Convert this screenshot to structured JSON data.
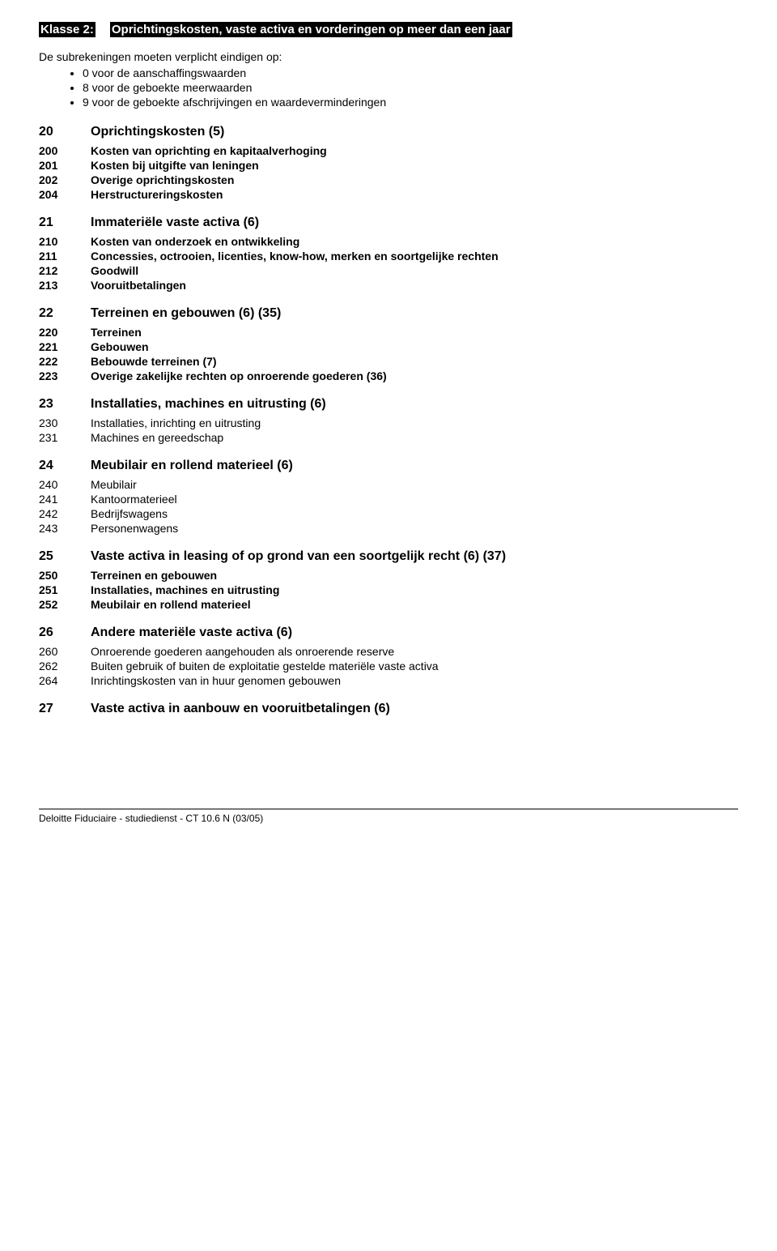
{
  "title": {
    "label": "Klasse 2:",
    "text": "Oprichtingskosten, vaste activa en vorderingen op meer dan een jaar"
  },
  "intro": "De subrekeningen moeten verplicht eindigen op:",
  "bullets": [
    "0 voor de aanschaffingswaarden",
    "8 voor de geboekte meerwaarden",
    "9 voor de geboekte afschrijvingen en waardeverminderingen"
  ],
  "sections": [
    {
      "code": "20",
      "label": "Oprichtingskosten (5)",
      "items": [
        {
          "code": "200",
          "label": "Kosten van oprichting en kapitaalverhoging",
          "bold": true
        },
        {
          "code": "201",
          "label": "Kosten bij uitgifte van leningen",
          "bold": true
        },
        {
          "code": "202",
          "label": "Overige oprichtingskosten",
          "bold": true
        },
        {
          "code": "204",
          "label": "Herstructureringskosten",
          "bold": true
        }
      ]
    },
    {
      "code": "21",
      "label": "Immateriële vaste activa (6)",
      "items": [
        {
          "code": "210",
          "label": "Kosten van onderzoek en ontwikkeling",
          "bold": true
        },
        {
          "code": "211",
          "label": "Concessies, octrooien, licenties, know-how, merken en soortgelijke rechten",
          "bold": true
        },
        {
          "code": "212",
          "label": "Goodwill",
          "bold": true
        },
        {
          "code": "213",
          "label": "Vooruitbetalingen",
          "bold": true
        }
      ]
    },
    {
      "code": "22",
      "label": "Terreinen en gebouwen (6) (35)",
      "items": [
        {
          "code": "220",
          "label": "Terreinen",
          "bold": true
        },
        {
          "code": "221",
          "label": "Gebouwen",
          "bold": true
        },
        {
          "code": "222",
          "label": "Bebouwde terreinen (7)",
          "bold": true
        },
        {
          "code": "223",
          "label": "Overige zakelijke rechten op onroerende goederen (36)",
          "bold": true
        }
      ]
    },
    {
      "code": "23",
      "label": "Installaties, machines en uitrusting (6)",
      "items": [
        {
          "code": "230",
          "label": "Installaties, inrichting en uitrusting",
          "bold": false
        },
        {
          "code": "231",
          "label": "Machines en gereedschap",
          "bold": false
        }
      ]
    },
    {
      "code": "24",
      "label": "Meubilair en rollend materieel (6)",
      "items": [
        {
          "code": "240",
          "label": "Meubilair",
          "bold": false
        },
        {
          "code": "241",
          "label": "Kantoormaterieel",
          "bold": false
        },
        {
          "code": "242",
          "label": "Bedrijfswagens",
          "bold": false
        },
        {
          "code": "243",
          "label": "Personenwagens",
          "bold": false
        }
      ]
    },
    {
      "code": "25",
      "label": "Vaste activa in leasing of op grond van een soortgelijk recht (6) (37)",
      "items": [
        {
          "code": "250",
          "label": "Terreinen en gebouwen",
          "bold": true
        },
        {
          "code": "251",
          "label": "Installaties, machines en uitrusting",
          "bold": true
        },
        {
          "code": "252",
          "label": "Meubilair en rollend materieel",
          "bold": true
        }
      ]
    },
    {
      "code": "26",
      "label": "Andere materiële vaste activa (6)",
      "items": [
        {
          "code": "260",
          "label": "Onroerende goederen aangehouden als onroerende reserve",
          "bold": false
        },
        {
          "code": "262",
          "label": "Buiten gebruik of buiten de exploitatie gestelde materiële vaste activa",
          "bold": false
        },
        {
          "code": "264",
          "label": "Inrichtingskosten van in huur genomen gebouwen",
          "bold": false
        }
      ]
    },
    {
      "code": "27",
      "label": "Vaste activa in aanbouw en vooruitbetalingen (6)",
      "items": []
    }
  ],
  "footer": "Deloitte Fiduciaire - studiedienst - CT 10.6 N (03/05)"
}
